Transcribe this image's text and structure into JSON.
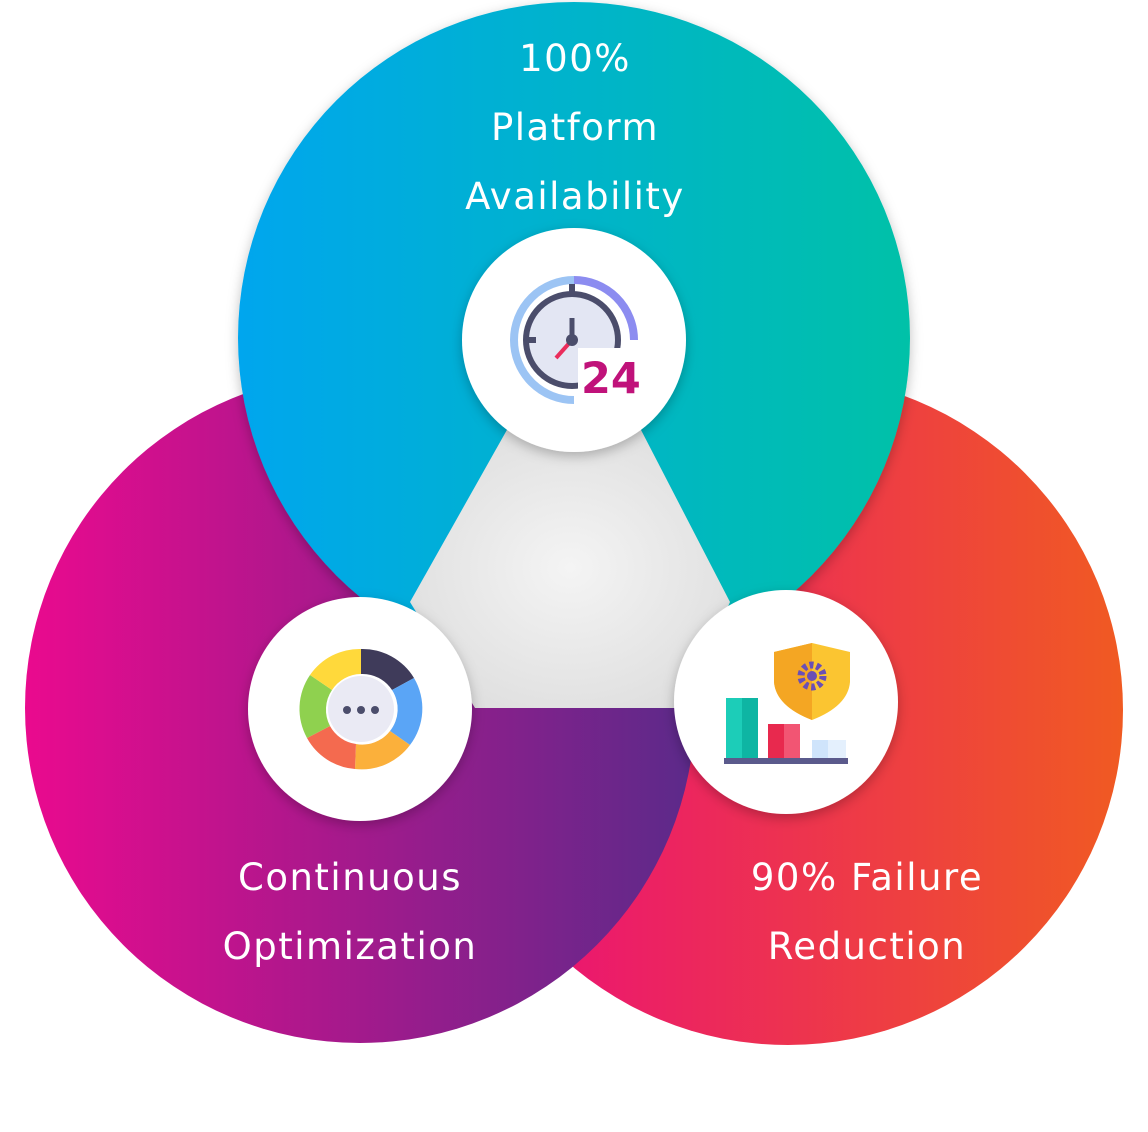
{
  "nodes": [
    {
      "id": "availability",
      "lines": [
        "100%",
        "Platform",
        "Availability"
      ],
      "icon": "clock-24-icon",
      "gradient": [
        "#00a6ee",
        "#00c1a8"
      ]
    },
    {
      "id": "optimization",
      "lines": [
        "Continuous",
        "Optimization"
      ],
      "icon": "cycle-chat-icon",
      "gradient": [
        "#ea0a8e",
        "#5b2a8a"
      ]
    },
    {
      "id": "failure",
      "lines": [
        "90% Failure",
        "Reduction"
      ],
      "icon": "shield-bar-chart-icon",
      "gradient": [
        "#ea0a7e",
        "#f05a22"
      ]
    }
  ],
  "icon_text": {
    "clock_number": "24"
  },
  "colors": {
    "center_triangle": "#ececec",
    "icon_circle": "#ffffff",
    "label_text": "#ffffff"
  }
}
